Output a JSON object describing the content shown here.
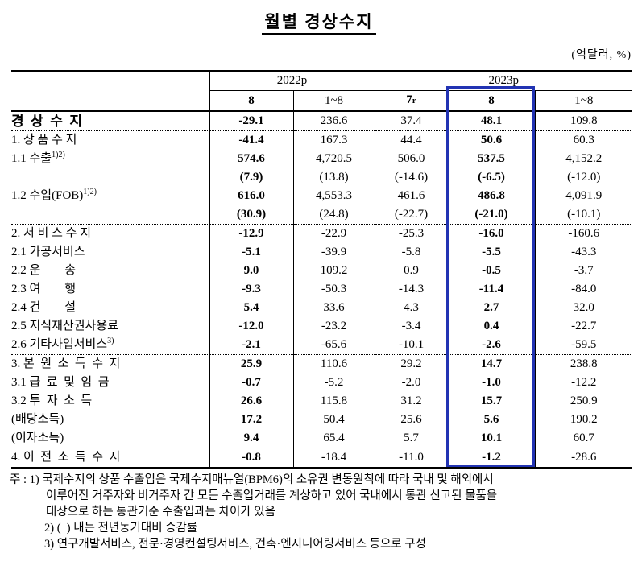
{
  "title": "월별 경상수지",
  "unit_label": "(억달러, %)",
  "colors": {
    "highlight_border": "#2233b3"
  },
  "table": {
    "year_headers": [
      {
        "label": "2022p",
        "span": 2
      },
      {
        "label": "2023p",
        "span": 3
      }
    ],
    "column_headers": [
      {
        "label": "8",
        "bold": true
      },
      {
        "label": "1~8",
        "bold": false
      },
      {
        "label": "7",
        "suffix": "r",
        "bold": true
      },
      {
        "label": "8",
        "bold": true
      },
      {
        "label": "1~8",
        "bold": false
      }
    ],
    "bold_columns": [
      0,
      3
    ],
    "highlighted_column": 3,
    "rows": [
      {
        "label": "경  상  수  지",
        "lvl": 0,
        "v": [
          "-29.1",
          "236.6",
          "37.4",
          "48.1",
          "109.8"
        ],
        "sep": true
      },
      {
        "label": "1. 상 품 수 지",
        "lvl": 1,
        "v": [
          "-41.4",
          "167.3",
          "44.4",
          "50.6",
          "60.3"
        ]
      },
      {
        "label": "1.1 수출",
        "sup": "1)2)",
        "lvl": 2,
        "v": [
          "574.6",
          "4,720.5",
          "506.0",
          "537.5",
          "4,152.2"
        ]
      },
      {
        "label": "",
        "lvl": 2,
        "v": [
          "(7.9)",
          "(13.8)",
          "(-14.6)",
          "(-6.5)",
          "(-12.0)"
        ]
      },
      {
        "label": "1.2 수입(FOB)",
        "sup": "1)2)",
        "lvl": 2,
        "v": [
          "616.0",
          "4,553.3",
          "461.6",
          "486.8",
          "4,091.9"
        ]
      },
      {
        "label": "",
        "lvl": 2,
        "v": [
          "(30.9)",
          "(24.8)",
          "(-22.7)",
          "(-21.0)",
          "(-10.1)"
        ],
        "sep": true
      },
      {
        "label": "2. 서 비 스 수 지",
        "lvl": 1,
        "v": [
          "-12.9",
          "-22.9",
          "-25.3",
          "-16.0",
          "-160.6"
        ]
      },
      {
        "label": "2.1 가공서비스",
        "lvl": 2,
        "v": [
          "-5.1",
          "-39.9",
          "-5.8",
          "-5.5",
          "-43.3"
        ]
      },
      {
        "label": "2.2 운        송",
        "lvl": 2,
        "v": [
          "9.0",
          "109.2",
          "0.9",
          "-0.5",
          "-3.7"
        ]
      },
      {
        "label": "2.3 여        행",
        "lvl": 2,
        "v": [
          "-9.3",
          "-50.3",
          "-14.3",
          "-11.4",
          "-84.0"
        ]
      },
      {
        "label": "2.4 건        설",
        "lvl": 2,
        "v": [
          "5.4",
          "33.6",
          "4.3",
          "2.7",
          "32.0"
        ]
      },
      {
        "label": "2.5 지식재산권사용료",
        "lvl": 2,
        "v": [
          "-12.0",
          "-23.2",
          "-3.4",
          "0.4",
          "-22.7"
        ]
      },
      {
        "label": "2.6 기타사업서비스",
        "sup": "3)",
        "lvl": 2,
        "v": [
          "-2.1",
          "-65.6",
          "-10.1",
          "-2.6",
          "-59.5"
        ],
        "sep": true
      },
      {
        "label": "3. 본  원  소  득  수  지",
        "lvl": 1,
        "v": [
          "25.9",
          "110.6",
          "29.2",
          "14.7",
          "238.8"
        ]
      },
      {
        "label": "3.1 급  료  및  임  금",
        "lvl": 2,
        "v": [
          "-0.7",
          "-5.2",
          "-2.0",
          "-1.0",
          "-12.2"
        ]
      },
      {
        "label": "3.2 투  자  소  득",
        "lvl": 2,
        "v": [
          "26.6",
          "115.8",
          "31.2",
          "15.7",
          "250.9"
        ]
      },
      {
        "label": "(배당소득)",
        "lvl": 3,
        "v": [
          "17.2",
          "50.4",
          "25.6",
          "5.6",
          "190.2"
        ]
      },
      {
        "label": "(이자소득)",
        "lvl": 3,
        "v": [
          "9.4",
          "65.4",
          "5.7",
          "10.1",
          "60.7"
        ],
        "sep": true
      },
      {
        "label": "4. 이  전  소  득  수  지",
        "lvl": 1,
        "v": [
          "-0.8",
          "-18.4",
          "-11.0",
          "-1.2",
          "-28.6"
        ]
      }
    ]
  },
  "footnotes": {
    "lines": [
      {
        "text": "주 : 1) 국제수지의 상품 수출입은 국제수지매뉴얼(BPM6)의 소유권 변동원칙에 따라 국내 및 해외에서",
        "indent": 0
      },
      {
        "text": "이루어진 거주자와 비거주자 간 모든 수출입거래를 계상하고 있어 국내에서 통관 신고된 물품을",
        "indent": 2
      },
      {
        "text": "대상으로 하는 통관기준 수출입과는 차이가 있음",
        "indent": 2
      },
      {
        "text": "2) (  ) 내는 전년동기대비 증감률",
        "indent": 1
      },
      {
        "text": "3) 연구개발서비스, 전문·경영컨설팅서비스, 건축·엔지니어링서비스 등으로 구성",
        "indent": 1
      }
    ]
  }
}
